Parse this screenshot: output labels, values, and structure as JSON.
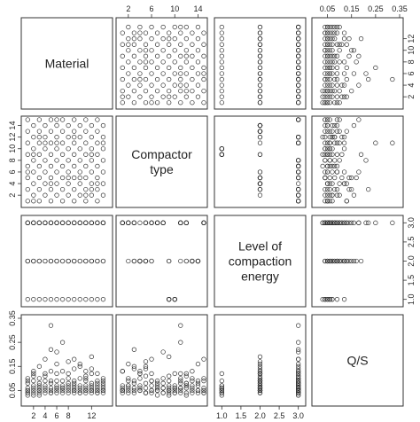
{
  "chart_data": {
    "type": "scatter",
    "variables": [
      {
        "id": "material",
        "label_lines": [
          "Material"
        ],
        "range": [
          0.5,
          15
        ],
        "ticks": [
          2,
          6,
          10,
          14
        ],
        "tick_labels": [
          "2",
          "6",
          "10",
          "14"
        ]
      },
      {
        "id": "compactor",
        "label_lines": [
          "Compactor",
          "type"
        ],
        "range": [
          0.5,
          15
        ],
        "ticks": [
          2,
          4,
          6,
          8,
          10,
          12,
          14
        ],
        "tick_labels": [
          "2",
          "4",
          "6",
          "8",
          "10",
          "12",
          "14"
        ]
      },
      {
        "id": "energy",
        "label_lines": [
          "Level of",
          "compaction",
          "energy"
        ],
        "range": [
          0.9,
          3.1
        ],
        "ticks": [
          1.0,
          1.5,
          2.0,
          2.5,
          3.0
        ],
        "tick_labels": [
          "1.0",
          "1.5",
          "2.0",
          "2.5",
          "3.0"
        ]
      },
      {
        "id": "qs",
        "label_lines": [
          "Q/S"
        ],
        "range": [
          0.0,
          0.35
        ],
        "ticks": [
          0.05,
          0.1,
          0.15,
          0.2,
          0.25,
          0.3,
          0.35
        ],
        "tick_labels": [
          "0.05",
          "0.15",
          "0.25",
          "0.35"
        ],
        "tick_labels_left": [
          "0.05",
          "0.15",
          "0.25",
          "0.35"
        ]
      }
    ],
    "axes": {
      "top": [
        {
          "column": 1,
          "ticks": [
            2,
            6,
            10,
            14
          ],
          "labels": [
            "2",
            "6",
            "10",
            "14"
          ]
        },
        {
          "column": 3,
          "ticks": [
            0.05,
            0.15,
            0.25,
            0.35
          ],
          "labels": [
            "0.05",
            "0.15",
            "0.25",
            "0.35"
          ]
        }
      ],
      "bottom": [
        {
          "column": 0,
          "ticks": [
            2,
            4,
            6,
            8,
            12
          ],
          "labels": [
            "2",
            "4",
            "6",
            "8",
            "12"
          ]
        },
        {
          "column": 2,
          "ticks": [
            1.0,
            1.5,
            2.0,
            2.5,
            3.0
          ],
          "labels": [
            "1.0",
            "1.5",
            "2.0",
            "2.5",
            "3.0"
          ]
        }
      ],
      "left": [
        {
          "row": 1,
          "ticks": [
            2,
            4,
            6,
            8,
            10,
            12,
            14
          ],
          "labels": [
            "2",
            "4",
            "6",
            "8",
            "10",
            "12",
            "14"
          ]
        },
        {
          "row": 3,
          "ticks": [
            0.05,
            0.15,
            0.25,
            0.35
          ],
          "labels": [
            "0.05",
            "0.15",
            "0.25",
            "0.35"
          ]
        }
      ],
      "right": [
        {
          "row": 0,
          "ticks": [
            2,
            4,
            6,
            8,
            10,
            12
          ],
          "labels": [
            "2",
            "4",
            "6",
            "8",
            "10",
            "12"
          ]
        },
        {
          "row": 2,
          "ticks": [
            1.0,
            1.5,
            2.0,
            2.5,
            3.0
          ],
          "labels": [
            "1.0",
            "1.5",
            "2.0",
            "2.5",
            "3.0"
          ]
        }
      ]
    },
    "observations": [
      [
        1,
        1,
        3,
        0.05
      ],
      [
        1,
        3,
        3,
        0.04
      ],
      [
        1,
        5,
        2,
        0.06
      ],
      [
        1,
        7,
        3,
        0.03
      ],
      [
        1,
        9,
        1,
        0.05
      ],
      [
        1,
        11,
        3,
        0.08
      ],
      [
        1,
        13,
        2,
        0.04
      ],
      [
        1,
        15,
        3,
        0.1
      ],
      [
        2,
        2,
        3,
        0.07
      ],
      [
        2,
        4,
        3,
        0.05
      ],
      [
        2,
        6,
        2,
        0.12
      ],
      [
        2,
        8,
        3,
        0.04
      ],
      [
        2,
        10,
        1,
        0.06
      ],
      [
        2,
        12,
        3,
        0.03
      ],
      [
        2,
        14,
        2,
        0.09
      ],
      [
        3,
        1,
        3,
        0.05
      ],
      [
        3,
        3,
        2,
        0.15
      ],
      [
        3,
        5,
        3,
        0.04
      ],
      [
        3,
        7,
        3,
        0.08
      ],
      [
        3,
        9,
        1,
        0.03
      ],
      [
        3,
        11,
        3,
        0.06
      ],
      [
        3,
        13,
        2,
        0.1
      ],
      [
        3,
        15,
        3,
        0.05
      ],
      [
        4,
        2,
        3,
        0.09
      ],
      [
        4,
        4,
        2,
        0.05
      ],
      [
        4,
        6,
        3,
        0.18
      ],
      [
        4,
        8,
        3,
        0.06
      ],
      [
        4,
        10,
        1,
        0.04
      ],
      [
        4,
        12,
        3,
        0.11
      ],
      [
        4,
        14,
        2,
        0.07
      ],
      [
        5,
        1,
        3,
        0.04
      ],
      [
        5,
        3,
        3,
        0.22
      ],
      [
        5,
        5,
        2,
        0.08
      ],
      [
        5,
        7,
        3,
        0.05
      ],
      [
        5,
        9,
        1,
        0.06
      ],
      [
        5,
        11,
        3,
        0.32
      ],
      [
        5,
        13,
        2,
        0.09
      ],
      [
        5,
        15,
        3,
        0.04
      ],
      [
        6,
        2,
        3,
        0.06
      ],
      [
        6,
        4,
        2,
        0.12
      ],
      [
        6,
        6,
        3,
        0.05
      ],
      [
        6,
        8,
        3,
        0.21
      ],
      [
        6,
        10,
        1,
        0.07
      ],
      [
        6,
        12,
        3,
        0.04
      ],
      [
        6,
        14,
        2,
        0.16
      ],
      [
        7,
        1,
        3,
        0.13
      ],
      [
        7,
        3,
        2,
        0.06
      ],
      [
        7,
        5,
        3,
        0.04
      ],
      [
        7,
        7,
        3,
        0.09
      ],
      [
        7,
        9,
        1,
        0.05
      ],
      [
        7,
        11,
        3,
        0.25
      ],
      [
        7,
        13,
        2,
        0.07
      ],
      [
        7,
        15,
        3,
        0.06
      ],
      [
        8,
        2,
        3,
        0.05
      ],
      [
        8,
        4,
        2,
        0.1
      ],
      [
        8,
        6,
        3,
        0.07
      ],
      [
        8,
        8,
        3,
        0.04
      ],
      [
        8,
        10,
        1,
        0.12
      ],
      [
        8,
        12,
        3,
        0.06
      ],
      [
        8,
        14,
        2,
        0.08
      ],
      [
        9,
        1,
        3,
        0.07
      ],
      [
        9,
        3,
        3,
        0.05
      ],
      [
        9,
        5,
        2,
        0.14
      ],
      [
        9,
        7,
        3,
        0.06
      ],
      [
        9,
        9,
        1,
        0.04
      ],
      [
        9,
        11,
        3,
        0.09
      ],
      [
        9,
        13,
        2,
        0.05
      ],
      [
        9,
        15,
        3,
        0.18
      ],
      [
        10,
        2,
        3,
        0.16
      ],
      [
        10,
        4,
        2,
        0.06
      ],
      [
        10,
        6,
        3,
        0.04
      ],
      [
        10,
        8,
        3,
        0.1
      ],
      [
        10,
        10,
        1,
        0.05
      ],
      [
        10,
        12,
        3,
        0.07
      ],
      [
        10,
        14,
        2,
        0.04
      ],
      [
        11,
        1,
        3,
        0.06
      ],
      [
        11,
        3,
        2,
        0.09
      ],
      [
        11,
        5,
        3,
        0.11
      ],
      [
        11,
        7,
        3,
        0.05
      ],
      [
        11,
        9,
        1,
        0.07
      ],
      [
        11,
        11,
        3,
        0.04
      ],
      [
        11,
        13,
        2,
        0.13
      ],
      [
        11,
        15,
        3,
        0.05
      ],
      [
        12,
        2,
        3,
        0.04
      ],
      [
        12,
        4,
        2,
        0.07
      ],
      [
        12,
        6,
        3,
        0.05
      ],
      [
        12,
        8,
        3,
        0.08
      ],
      [
        12,
        10,
        1,
        0.06
      ],
      [
        12,
        12,
        3,
        0.12
      ],
      [
        12,
        14,
        2,
        0.05
      ],
      [
        13,
        1,
        3,
        0.05
      ],
      [
        13,
        3,
        3,
        0.08
      ],
      [
        13,
        5,
        2,
        0.04
      ],
      [
        13,
        7,
        3,
        0.07
      ],
      [
        13,
        9,
        1,
        0.09
      ],
      [
        13,
        11,
        3,
        0.05
      ],
      [
        13,
        13,
        2,
        0.06
      ],
      [
        13,
        15,
        3,
        0.04
      ],
      [
        14,
        2,
        3,
        0.07
      ],
      [
        14,
        4,
        2,
        0.05
      ],
      [
        14,
        6,
        3,
        0.09
      ],
      [
        14,
        8,
        3,
        0.06
      ],
      [
        14,
        10,
        1,
        0.04
      ],
      [
        14,
        12,
        3,
        0.08
      ],
      [
        14,
        14,
        2,
        0.05
      ],
      [
        1,
        6,
        2,
        0.09
      ],
      [
        2,
        9,
        2,
        0.11
      ],
      [
        3,
        12,
        2,
        0.07
      ],
      [
        5,
        4,
        2,
        0.13
      ],
      [
        6,
        11,
        2,
        0.06
      ],
      [
        8,
        5,
        2,
        0.17
      ],
      [
        9,
        12,
        2,
        0.08
      ],
      [
        11,
        2,
        2,
        0.1
      ],
      [
        12,
        9,
        2,
        0.19
      ],
      [
        13,
        4,
        2,
        0.12
      ],
      [
        2,
        1,
        3,
        0.13
      ],
      [
        4,
        11,
        3,
        0.12
      ],
      [
        6,
        15,
        3,
        0.09
      ],
      [
        10,
        5,
        3,
        0.15
      ],
      [
        12,
        3,
        3,
        0.14
      ],
      [
        14,
        11,
        3,
        0.1
      ]
    ]
  }
}
